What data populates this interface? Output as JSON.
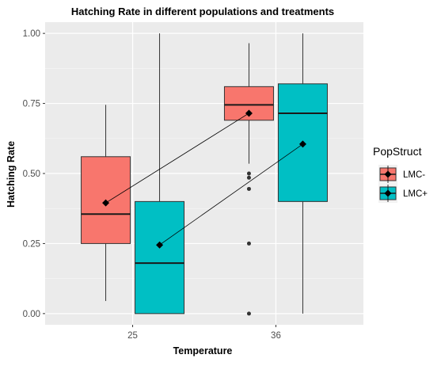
{
  "chart_data": {
    "type": "box",
    "title": "Hatching Rate in different populations and treatments",
    "xlabel": "Temperature",
    "ylabel": "Hatching Rate",
    "categories": [
      "25",
      "36"
    ],
    "ylim": [
      -0.04,
      1.04
    ],
    "yticks": [
      0.0,
      0.25,
      0.5,
      0.75,
      1.0
    ],
    "ytick_labels": [
      "0.00",
      "0.25",
      "0.50",
      "0.75",
      "1.00"
    ],
    "grid": true,
    "legend": {
      "title": "PopStruct",
      "position": "right"
    },
    "series": [
      {
        "name": "LMC-",
        "color": "#F8766D",
        "boxes": [
          {
            "category": "25",
            "min": 0.045,
            "q1": 0.25,
            "median": 0.355,
            "q3": 0.56,
            "max": 0.745,
            "outliers": []
          },
          {
            "category": "36",
            "min": 0.535,
            "q1": 0.69,
            "median": 0.745,
            "q3": 0.81,
            "max": 0.965,
            "outliers": [
              0.5,
              0.485,
              0.445,
              0.25,
              0.0
            ]
          }
        ],
        "means": [
          0.395,
          0.715
        ]
      },
      {
        "name": "LMC+",
        "color": "#00BFC4",
        "boxes": [
          {
            "category": "25",
            "min": 0.0,
            "q1": 0.0,
            "median": 0.18,
            "q3": 0.4,
            "max": 1.0,
            "outliers": []
          },
          {
            "category": "36",
            "min": 0.0,
            "q1": 0.4,
            "median": 0.715,
            "q3": 0.82,
            "max": 1.0,
            "outliers": []
          }
        ],
        "means": [
          0.245,
          0.605
        ]
      }
    ]
  }
}
